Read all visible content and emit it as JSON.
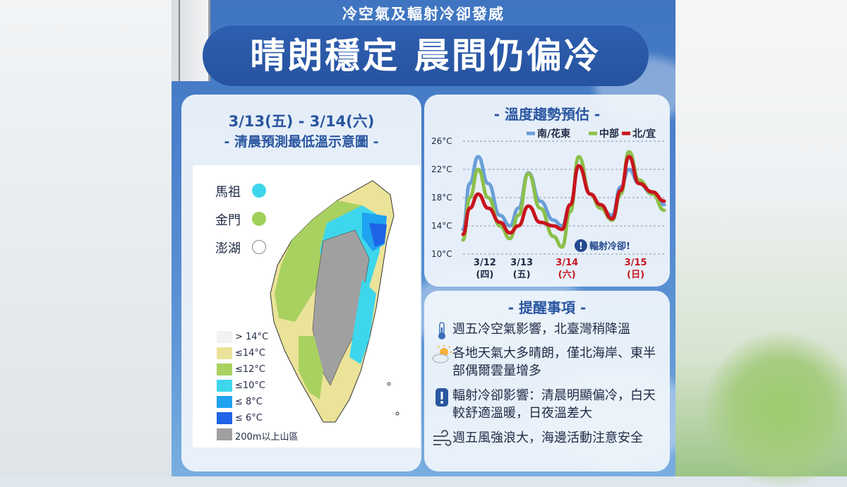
{
  "header": {
    "subtitle": "冷空氣及輻射冷卻發威",
    "title": "晴朗穩定 晨間仍偏冷"
  },
  "map_panel": {
    "date_range": "3/13(五) - 3/14(六)",
    "subtitle": "- 清晨預測最低溫示意圖 -",
    "islands": [
      {
        "name": "馬祖",
        "color": "#3ed6ec"
      },
      {
        "name": "金門",
        "color": "#9fd15a"
      },
      {
        "name": "澎湖",
        "color": "#ffffff"
      }
    ],
    "legend": [
      {
        "label": "> 14°C",
        "color": "#f2f2f2"
      },
      {
        "label": "≤14°C",
        "color": "#ece39a"
      },
      {
        "label": "≤12°C",
        "color": "#a9d160"
      },
      {
        "label": "≤10°C",
        "color": "#3ed6ec"
      },
      {
        "label": "≤  8°C",
        "color": "#1fa2ef"
      },
      {
        "label": "≤  6°C",
        "color": "#1f63e6"
      },
      {
        "label": "200m以上山區",
        "color": "#a0a0a0"
      }
    ]
  },
  "chart_panel": {
    "title": "- 溫度趨勢預估 -",
    "note": "輻射冷卻!"
  },
  "chart_data": {
    "type": "line",
    "title": "- 溫度趨勢預估 -",
    "y_ticks": [
      "26°C",
      "22°C",
      "18°C",
      "14°C",
      "10°C"
    ],
    "ylim": [
      10,
      26
    ],
    "x_labels": [
      {
        "date": "3/12",
        "day": "(四)",
        "color": "#1f2a44"
      },
      {
        "date": "3/13",
        "day": "(五)",
        "color": "#1f2a44"
      },
      {
        "date": "3/14",
        "day": "(六)",
        "color": "#c8141e"
      },
      {
        "date": "3/15",
        "day": "(日)",
        "color": "#c8141e"
      }
    ],
    "x_range": [
      0,
      12
    ],
    "grid": true,
    "legend_position": "top-right",
    "series": [
      {
        "name": "南/花東",
        "color": "#6a9fd8",
        "x": [
          0,
          0.4,
          0.9,
          1.5,
          2.2,
          2.8,
          3.3,
          3.9,
          4.6,
          5.4,
          5.9,
          6.4,
          6.9,
          7.6,
          8.2,
          8.9,
          9.4,
          9.9,
          10.5,
          11.3,
          12
        ],
        "y": [
          13.5,
          20,
          23.8,
          20,
          15.5,
          14,
          16.5,
          21.5,
          17.5,
          14.8,
          14,
          17,
          22.5,
          18.5,
          16.5,
          15.5,
          19.5,
          22,
          20,
          18.5,
          17
        ]
      },
      {
        "name": "中部",
        "color": "#8cc04a",
        "x": [
          0,
          0.4,
          0.9,
          1.5,
          2.2,
          2.8,
          3.3,
          3.9,
          4.6,
          5.4,
          5.9,
          6.4,
          6.9,
          7.6,
          8.2,
          8.9,
          9.4,
          9.9,
          10.5,
          11.3,
          12
        ],
        "y": [
          12,
          18,
          22,
          18,
          14,
          12.2,
          15.5,
          21.4,
          16.5,
          12.5,
          11,
          16,
          23.8,
          18.5,
          16.5,
          14.8,
          18.5,
          24.5,
          20.5,
          18.5,
          16.2
        ]
      },
      {
        "name": "北/宜",
        "color": "#c8141e",
        "x": [
          0,
          0.4,
          0.9,
          1.5,
          2.2,
          2.8,
          3.3,
          3.9,
          4.6,
          5.4,
          5.9,
          6.4,
          6.9,
          7.6,
          8.2,
          8.9,
          9.4,
          9.9,
          10.5,
          11.3,
          12
        ],
        "y": [
          12.8,
          16.5,
          18.5,
          16.5,
          14.5,
          13,
          14,
          16.8,
          14.5,
          14,
          13.5,
          17,
          22.5,
          18.5,
          17,
          15,
          19,
          23.8,
          20,
          18.8,
          17.5
        ]
      }
    ]
  },
  "reminders": {
    "title": "- 提醒事項 -",
    "items": [
      {
        "icon": "thermometer-icon",
        "text": "週五冷空氣影響，北臺灣稍降溫"
      },
      {
        "icon": "partly-cloudy-icon",
        "text": "各地天氣大多晴朗，僅北海岸、東半部偶爾雲量增多"
      },
      {
        "icon": "exclamation-icon",
        "text": "輻射冷卻影響：清晨明顯偏冷，白天較舒適溫暖，日夜溫差大"
      },
      {
        "icon": "wind-icon",
        "text": "週五風強浪大，海邊活動注意安全"
      }
    ]
  }
}
